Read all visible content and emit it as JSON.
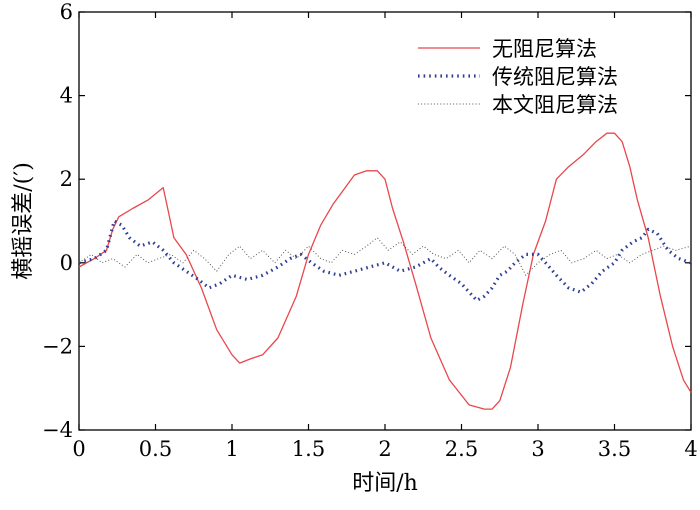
{
  "chart_data": {
    "type": "line",
    "title": "",
    "xlabel": "时间/h",
    "ylabel": "横摇误差/(′)",
    "xlim": [
      0,
      4
    ],
    "ylim": [
      -4,
      6
    ],
    "xticks": [
      0,
      0.5,
      1,
      1.5,
      2,
      2.5,
      3,
      3.5,
      4
    ],
    "xtick_labels": [
      "0",
      "0.5",
      "1",
      "1.5",
      "2",
      "2.5",
      "3",
      "3.5",
      "4"
    ],
    "yticks": [
      -4,
      -2,
      0,
      2,
      4,
      6
    ],
    "ytick_labels": [
      "−4",
      "−2",
      "0",
      "2",
      "4",
      "6"
    ],
    "grid": false,
    "legend_position": "top-right",
    "series": [
      {
        "name": "无阻尼算法",
        "style": "solid",
        "color": "#e8474c",
        "x": [
          0,
          0.1,
          0.18,
          0.22,
          0.26,
          0.35,
          0.45,
          0.55,
          0.58,
          0.62,
          0.7,
          0.8,
          0.9,
          1.0,
          1.05,
          1.12,
          1.2,
          1.3,
          1.42,
          1.5,
          1.58,
          1.66,
          1.72,
          1.8,
          1.88,
          1.95,
          2.0,
          2.05,
          2.12,
          2.2,
          2.3,
          2.42,
          2.55,
          2.65,
          2.7,
          2.75,
          2.82,
          2.9,
          2.97,
          3.05,
          3.12,
          3.2,
          3.3,
          3.38,
          3.45,
          3.5,
          3.55,
          3.6,
          3.65,
          3.72,
          3.8,
          3.88,
          3.95,
          4.0
        ],
        "y": [
          -0.1,
          0.1,
          0.3,
          0.8,
          1.1,
          1.3,
          1.5,
          1.8,
          1.3,
          0.6,
          0.2,
          -0.6,
          -1.6,
          -2.2,
          -2.4,
          -2.3,
          -2.2,
          -1.8,
          -0.8,
          0.2,
          0.9,
          1.4,
          1.7,
          2.1,
          2.2,
          2.2,
          2.0,
          1.3,
          0.5,
          -0.5,
          -1.8,
          -2.8,
          -3.4,
          -3.5,
          -3.5,
          -3.3,
          -2.5,
          -1.0,
          0.2,
          1.0,
          2.0,
          2.3,
          2.6,
          2.9,
          3.1,
          3.1,
          2.9,
          2.3,
          1.5,
          0.6,
          -0.8,
          -2.0,
          -2.8,
          -3.1
        ]
      },
      {
        "name": "传统阻尼算法",
        "style": "dotted",
        "color": "#2e3f94",
        "x": [
          0,
          0.1,
          0.18,
          0.23,
          0.28,
          0.33,
          0.4,
          0.48,
          0.55,
          0.62,
          0.7,
          0.78,
          0.85,
          0.92,
          1.0,
          1.1,
          1.2,
          1.3,
          1.38,
          1.45,
          1.52,
          1.6,
          1.7,
          1.8,
          1.9,
          2.0,
          2.1,
          2.2,
          2.3,
          2.35,
          2.42,
          2.5,
          2.55,
          2.6,
          2.65,
          2.7,
          2.75,
          2.8,
          2.85,
          2.92,
          3.0,
          3.05,
          3.12,
          3.2,
          3.28,
          3.35,
          3.42,
          3.5,
          3.55,
          3.62,
          3.68,
          3.72,
          3.78,
          3.85,
          3.92,
          4.0
        ],
        "y": [
          0.0,
          0.1,
          0.3,
          1.0,
          0.9,
          0.6,
          0.4,
          0.5,
          0.3,
          0.0,
          -0.2,
          -0.4,
          -0.6,
          -0.5,
          -0.3,
          -0.4,
          -0.3,
          -0.1,
          0.1,
          0.2,
          0.0,
          -0.2,
          -0.3,
          -0.2,
          -0.1,
          0.0,
          -0.2,
          -0.1,
          0.1,
          -0.1,
          -0.3,
          -0.5,
          -0.7,
          -0.9,
          -0.8,
          -0.6,
          -0.3,
          -0.2,
          0.0,
          0.2,
          0.2,
          0.0,
          -0.3,
          -0.6,
          -0.7,
          -0.5,
          -0.2,
          0.0,
          0.3,
          0.5,
          0.6,
          0.8,
          0.7,
          0.3,
          0.1,
          0.0
        ]
      },
      {
        "name": "本文阻尼算法",
        "style": "dotted-thin",
        "color": "#555555",
        "x": [
          0,
          0.08,
          0.15,
          0.22,
          0.3,
          0.38,
          0.45,
          0.52,
          0.6,
          0.68,
          0.75,
          0.82,
          0.9,
          0.98,
          1.05,
          1.12,
          1.2,
          1.28,
          1.35,
          1.42,
          1.5,
          1.58,
          1.65,
          1.72,
          1.8,
          1.88,
          1.95,
          2.02,
          2.1,
          2.18,
          2.25,
          2.32,
          2.4,
          2.48,
          2.55,
          2.62,
          2.7,
          2.78,
          2.85,
          2.92,
          3.0,
          3.08,
          3.15,
          3.22,
          3.3,
          3.38,
          3.45,
          3.52,
          3.6,
          3.68,
          3.75,
          3.82,
          3.9,
          4.0
        ],
        "y": [
          0.0,
          0.2,
          0.0,
          0.1,
          -0.1,
          0.2,
          0.0,
          0.1,
          0.2,
          0.0,
          0.3,
          0.1,
          -0.2,
          0.2,
          0.4,
          0.1,
          0.3,
          0.0,
          0.3,
          0.1,
          0.4,
          0.1,
          0.0,
          0.3,
          0.2,
          0.4,
          0.6,
          0.3,
          0.5,
          0.2,
          0.4,
          0.2,
          0.1,
          0.3,
          0.0,
          0.3,
          0.1,
          0.4,
          0.2,
          -0.3,
          0.0,
          0.2,
          0.3,
          0.0,
          0.1,
          0.3,
          0.1,
          0.2,
          0.0,
          0.2,
          0.3,
          0.4,
          0.3,
          0.4
        ]
      }
    ]
  }
}
